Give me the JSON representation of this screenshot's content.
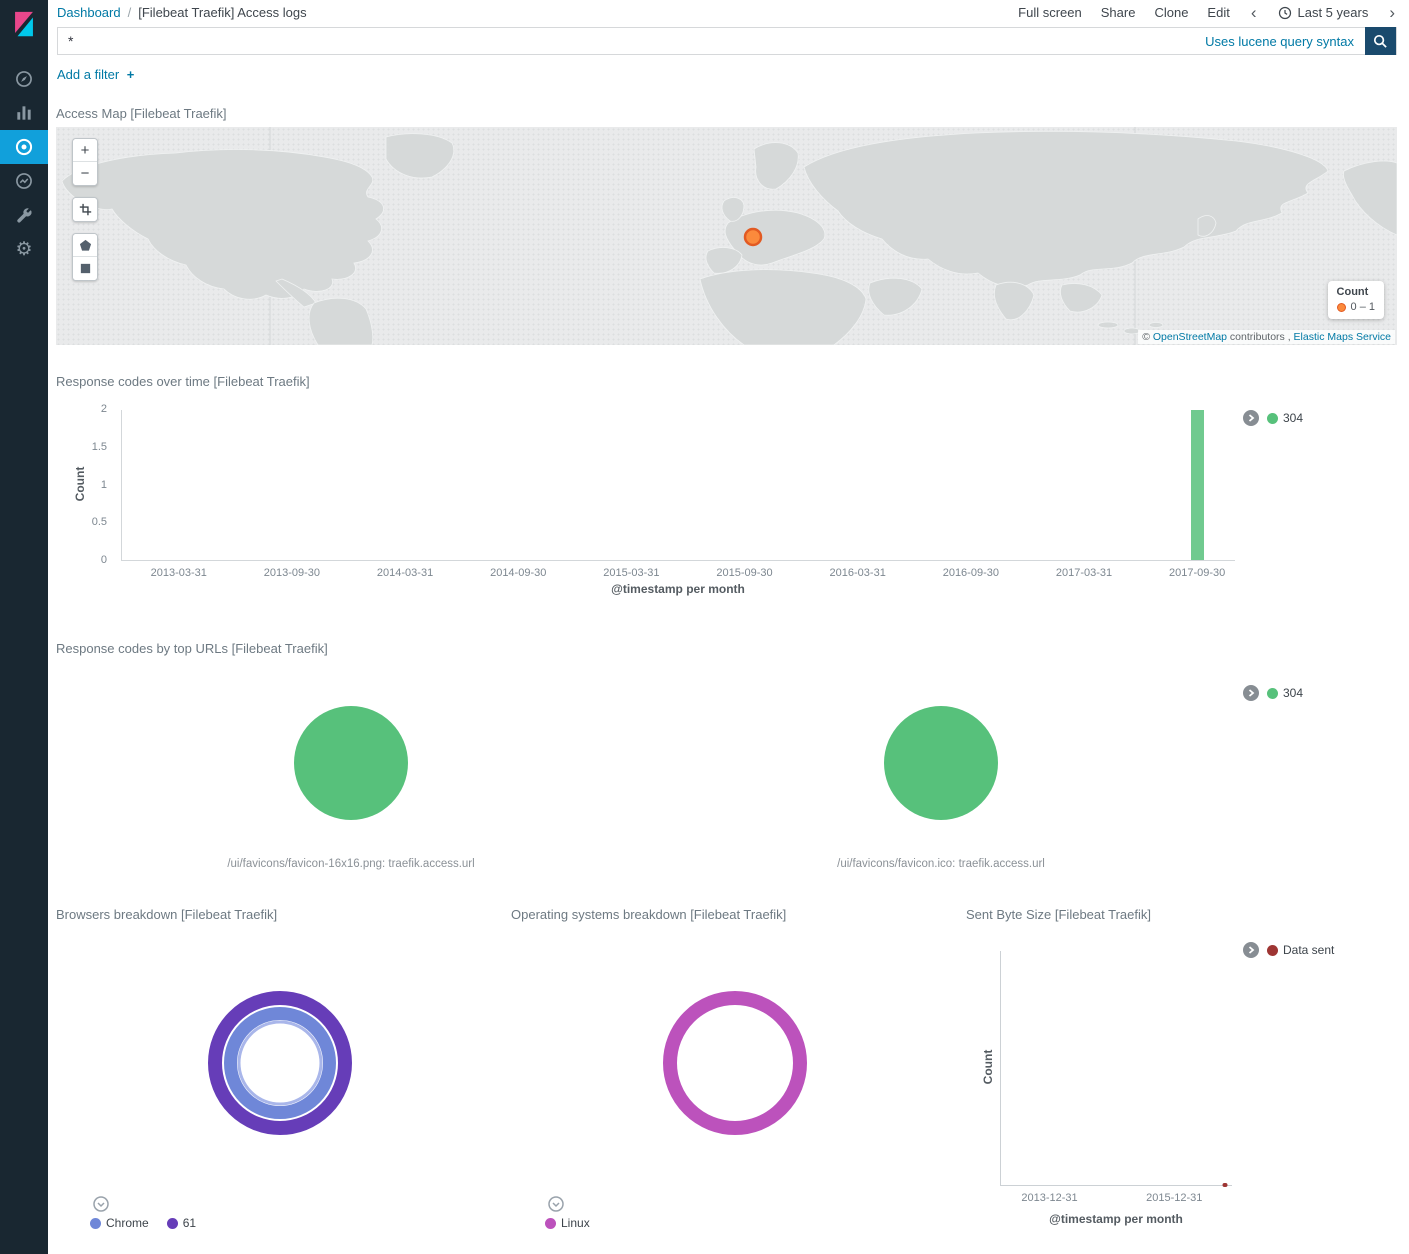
{
  "app": {
    "breadcrumb": {
      "root": "Dashboard",
      "separator": "/",
      "current": "[Filebeat Traefik] Access logs"
    },
    "toolbar": {
      "full_screen": "Full screen",
      "share": "Share",
      "clone": "Clone",
      "edit": "Edit"
    },
    "time_picker": {
      "prev": "‹",
      "label": "Last 5 years",
      "next": "›"
    },
    "query_bar": {
      "value": "*",
      "syntax_hint": "Uses lucene query syntax"
    },
    "filter_bar": {
      "add_filter": "Add a filter",
      "plus": "+"
    }
  },
  "panels": {
    "access_map": {
      "title": "Access Map [Filebeat Traefik]",
      "zoom_in": "+",
      "zoom_out": "−",
      "marker": {
        "fill": "#fb8a3c",
        "stroke": "#e25a22"
      },
      "legend": {
        "title": "Count",
        "items": [
          {
            "label": "0 – 1",
            "color": "#fb8a3c"
          }
        ]
      },
      "attribution": {
        "prefix": "© ",
        "osm": "OpenStreetMap",
        "middle": " contributors , ",
        "elastic": "Elastic Maps Service"
      }
    },
    "response_codes_over_time": {
      "title": "Response codes over time [Filebeat Traefik]"
    },
    "response_codes_by_top_urls": {
      "title": "Response codes by top URLs [Filebeat Traefik]"
    },
    "browsers": {
      "title": "Browsers breakdown [Filebeat Traefik]"
    },
    "operating_systems": {
      "title": "Operating systems breakdown [Filebeat Traefik]"
    },
    "sent_byte_size": {
      "title": "Sent Byte Size [Filebeat Traefik]"
    }
  },
  "chart_data": [
    {
      "id": "response_codes_over_time",
      "type": "bar",
      "title": "Response codes over time [Filebeat Traefik]",
      "xlabel": "@timestamp per month",
      "ylabel": "Count",
      "ylim": [
        0,
        2
      ],
      "y_ticks": [
        "2",
        "1.5",
        "1",
        "0.5",
        "0"
      ],
      "x_ticks": [
        "2013-03-31",
        "2013-09-30",
        "2014-03-31",
        "2014-09-30",
        "2015-03-31",
        "2015-09-30",
        "2016-03-31",
        "2016-09-30",
        "2017-03-31",
        "2017-09-30"
      ],
      "series": [
        {
          "name": "304",
          "color": "#57c17b",
          "points": [
            {
              "x": "2017-09-30",
              "y": 2
            }
          ]
        }
      ],
      "legend": [
        {
          "label": "304",
          "color": "#57c17b"
        }
      ],
      "legend_position": "right",
      "grid": false
    },
    {
      "id": "response_codes_by_top_urls",
      "type": "pie",
      "title": "Response codes by top URLs [Filebeat Traefik]",
      "split_charts": [
        {
          "label": "/ui/favicons/favicon-16x16.png: traefik.access.url",
          "slices": [
            {
              "name": "304",
              "percent": 100,
              "color": "#57c17b"
            }
          ]
        },
        {
          "label": "/ui/favicons/favicon.ico: traefik.access.url",
          "slices": [
            {
              "name": "304",
              "percent": 100,
              "color": "#57c17b"
            }
          ]
        }
      ],
      "legend": [
        {
          "label": "304",
          "color": "#57c17b"
        }
      ],
      "legend_position": "right"
    },
    {
      "id": "browsers_breakdown",
      "type": "pie",
      "subtype": "donut",
      "title": "Browsers breakdown [Filebeat Traefik]",
      "rings": [
        {
          "level": "inner",
          "slices": [
            {
              "name": "Chrome",
              "percent": 100,
              "color": "#6f87d8"
            }
          ]
        },
        {
          "level": "outer",
          "slices": [
            {
              "name": "61",
              "percent": 100,
              "color": "#663db8"
            }
          ]
        }
      ],
      "legend": [
        {
          "label": "Chrome",
          "color": "#6f87d8"
        },
        {
          "label": "61",
          "color": "#663db8"
        }
      ],
      "legend_position": "bottom"
    },
    {
      "id": "os_breakdown",
      "type": "pie",
      "subtype": "donut",
      "title": "Operating systems breakdown [Filebeat Traefik]",
      "rings": [
        {
          "level": "inner",
          "slices": [
            {
              "name": "Linux",
              "percent": 100,
              "color": "#bc52bc"
            }
          ]
        }
      ],
      "legend": [
        {
          "label": "Linux",
          "color": "#bc52bc"
        }
      ],
      "legend_position": "bottom"
    },
    {
      "id": "sent_byte_size",
      "type": "line",
      "title": "Sent Byte Size [Filebeat Traefik]",
      "xlabel": "@timestamp per month",
      "ylabel": "Count",
      "x_ticks": [
        {
          "label": "2013-12-31",
          "pos": 0.21
        },
        {
          "label": "2015-12-31",
          "pos": 0.75
        }
      ],
      "series": [
        {
          "name": "Data sent",
          "color": "#9e3533",
          "points": [
            {
              "x": "2017-09-30",
              "y": 0
            }
          ]
        }
      ],
      "marker": {
        "pos": 0.97
      },
      "legend": [
        {
          "label": "Data sent",
          "color": "#9e3533"
        }
      ],
      "legend_position": "right"
    }
  ]
}
